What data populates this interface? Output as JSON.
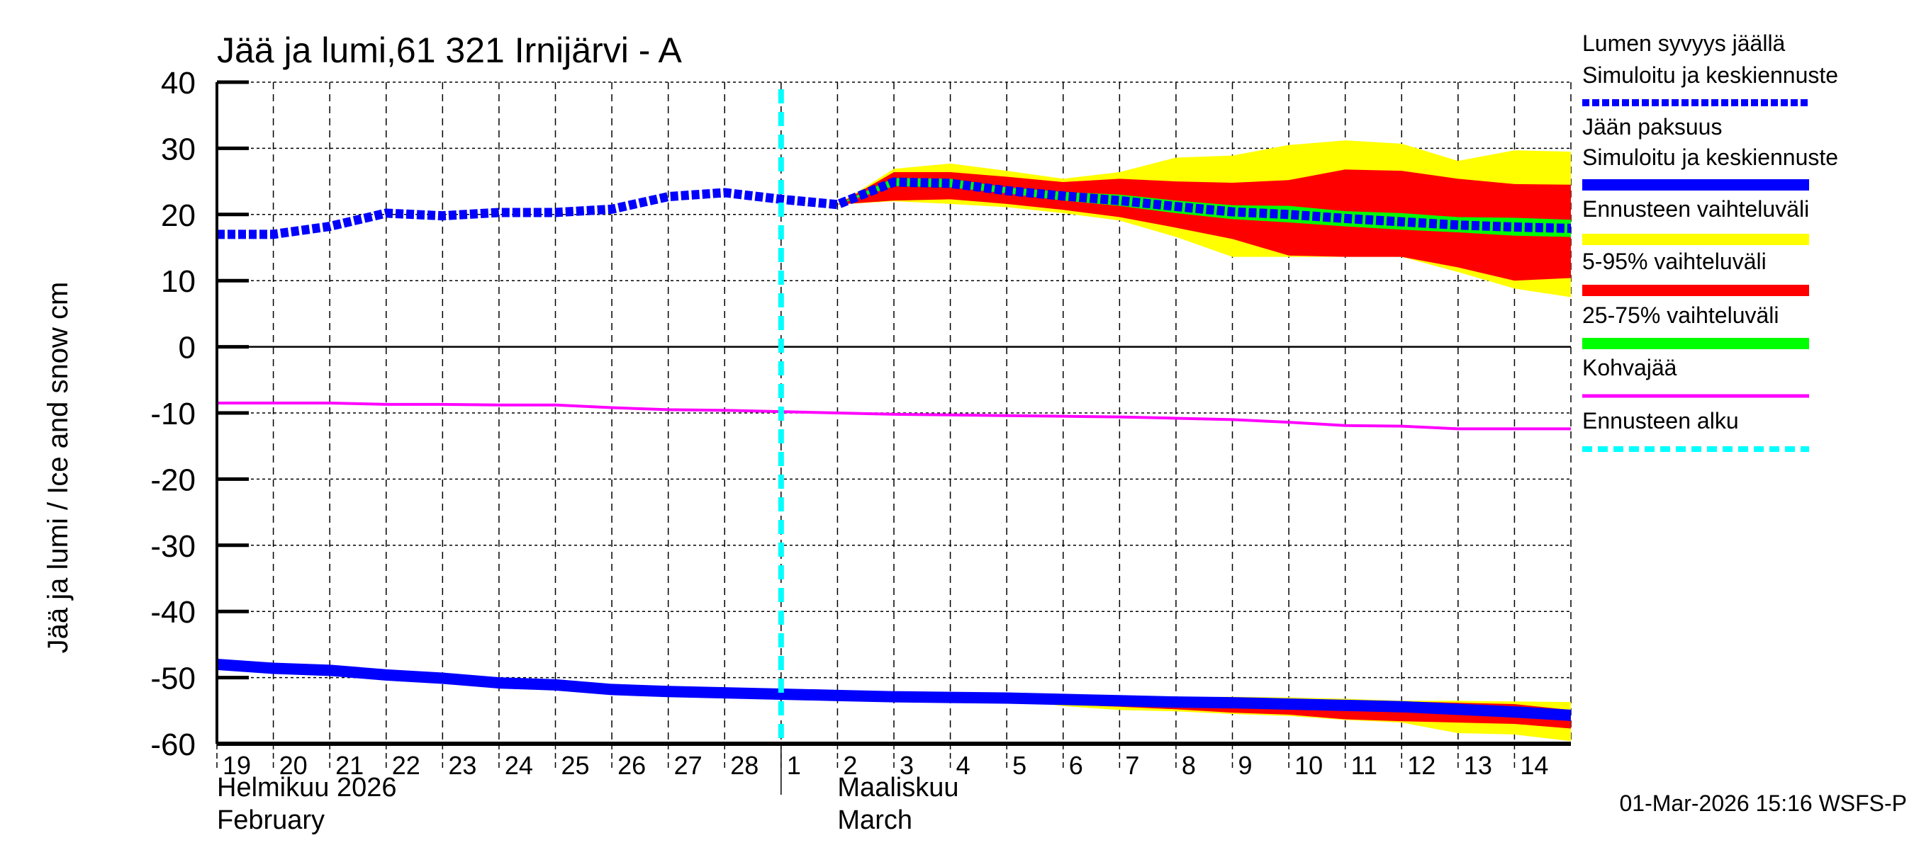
{
  "chart_data": {
    "type": "line",
    "title": "Jää ja lumi,61 321 Irnijärvi - A",
    "ylabel": "Jää ja lumi / Ice and snow    cm",
    "ylim": [
      -60,
      40
    ],
    "yticks": [
      40,
      30,
      20,
      10,
      0,
      -10,
      -20,
      -30,
      -40,
      -50,
      -60
    ],
    "grid": true,
    "legend_position": "right",
    "x_days": [
      "19",
      "20",
      "21",
      "22",
      "23",
      "24",
      "25",
      "26",
      "27",
      "28",
      "1",
      "2",
      "3",
      "4",
      "5",
      "6",
      "7",
      "8",
      "9",
      "10",
      "11",
      "12",
      "13",
      "14"
    ],
    "x_range": [
      "2026-02-19",
      "2026-03-15"
    ],
    "month_labels": [
      {
        "line1": "Helmikuu  2026",
        "line2": "February"
      },
      {
        "line1": "Maaliskuu",
        "line2": "March"
      }
    ],
    "dates": [
      "2026-02-19",
      "2026-02-20",
      "2026-02-21",
      "2026-02-22",
      "2026-02-23",
      "2026-02-24",
      "2026-02-25",
      "2026-02-26",
      "2026-02-27",
      "2026-02-28",
      "2026-03-01",
      "2026-03-02",
      "2026-03-03",
      "2026-03-04",
      "2026-03-05",
      "2026-03-06",
      "2026-03-07",
      "2026-03-08",
      "2026-03-09",
      "2026-03-10",
      "2026-03-11",
      "2026-03-12",
      "2026-03-13",
      "2026-03-14",
      "2026-03-15"
    ],
    "forecast_start": "2026-03-01",
    "forecast_band_dates_from": "2026-03-02",
    "series": {
      "snow_depth": [
        17,
        17,
        18.2,
        20.2,
        19.8,
        20.3,
        20.3,
        20.8,
        22.7,
        23.3,
        22.3,
        21.5,
        24.9,
        24.7,
        23.6,
        22.8,
        22.1,
        21.2,
        20.4,
        20.0,
        19.4,
        18.9,
        18.4,
        18.1,
        17.9
      ],
      "ice_thickness": [
        -48,
        -48.6,
        -48.9,
        -49.6,
        -50.1,
        -50.8,
        -51.1,
        -51.8,
        -52.1,
        -52.3,
        -52.5,
        -52.7,
        -52.9,
        -53,
        -53.1,
        -53.3,
        -53.5,
        -53.7,
        -53.8,
        -54,
        -54.2,
        -54.4,
        -54.8,
        -55.2,
        -55.7
      ],
      "slush_ice": [
        -8.5,
        -8.5,
        -8.5,
        -8.7,
        -8.7,
        -8.8,
        -8.8,
        -9.2,
        -9.5,
        -9.6,
        -9.8,
        -10,
        -10.2,
        -10.3,
        -10.4,
        -10.5,
        -10.6,
        -10.8,
        -11,
        -11.4,
        -11.9,
        -12,
        -12.4,
        -12.4,
        -12.4
      ]
    },
    "bands": {
      "snow": {
        "range_top": [
          21.5,
          26.9,
          27.7,
          26.6,
          25.4,
          26.4,
          28.6,
          28.9,
          30.5,
          31.2,
          30.7,
          28.1,
          29.7,
          29.5
        ],
        "range_bottom": [
          21.5,
          22,
          21.6,
          21.1,
          20.2,
          19.1,
          16.6,
          13.6,
          13.6,
          13.6,
          13.6,
          11.3,
          8.8,
          7.5
        ],
        "p95": [
          21.5,
          26.4,
          26.4,
          25.7,
          24.9,
          25.4,
          25,
          24.8,
          25.2,
          26.8,
          26.6,
          25.4,
          24.6,
          24.5
        ],
        "p5": [
          21.5,
          22.1,
          22.3,
          21.6,
          20.7,
          19.6,
          18,
          16.3,
          13.8,
          13.6,
          13.6,
          12,
          10,
          10.4
        ],
        "p75": [
          21.5,
          25.5,
          25.4,
          24.1,
          23.4,
          23,
          22.1,
          21.4,
          21.3,
          20.5,
          20.2,
          19.6,
          19.5,
          19.2
        ],
        "p25": [
          21.5,
          24.3,
          24.1,
          23.2,
          22.1,
          21.3,
          20.2,
          19.3,
          18.8,
          18.2,
          17.7,
          17.3,
          16.8,
          16.6
        ]
      },
      "ice": {
        "range_top": [
          -52.7,
          -52.9,
          -53,
          -53.1,
          -53.1,
          -53.1,
          -53,
          -52.9,
          -53,
          -53.2,
          -53.5,
          -53.5,
          -53.6,
          -53.7
        ],
        "range_bottom": [
          -52.7,
          -52.9,
          -53,
          -53.3,
          -54.3,
          -54.9,
          -55.1,
          -55.5,
          -55.8,
          -56.4,
          -56.8,
          -58.4,
          -58.6,
          -59.6
        ],
        "p95": [
          -52.7,
          -52.9,
          -53,
          -53.1,
          -53.2,
          -53.3,
          -53.3,
          -53.2,
          -53.3,
          -53.4,
          -53.6,
          -53.8,
          -54,
          -54.9
        ],
        "p5": [
          -52.7,
          -52.9,
          -53,
          -53.2,
          -54.1,
          -54.4,
          -54.8,
          -55.3,
          -55.6,
          -56.3,
          -56.6,
          -56.8,
          -57,
          -57.7
        ],
        "p75": [
          -52.3,
          -52.5,
          -52.6,
          -52.7,
          -52.9,
          -53.1,
          -53.3,
          -53.4,
          -53.6,
          -53.8,
          -54,
          -54.4,
          -54.8,
          -55.3
        ],
        "p25": [
          -53.1,
          -53.3,
          -53.4,
          -53.5,
          -53.7,
          -53.9,
          -54.1,
          -54.2,
          -54.4,
          -54.6,
          -54.8,
          -55.2,
          -55.6,
          -56.1
        ]
      }
    },
    "colors": {
      "snow": "#0000ff",
      "ice": "#0000ff",
      "slush": "#ff00ff",
      "forecast_start": "#00ffff",
      "range": "#ffff00",
      "p5_95": "#ff0000",
      "p25_75": "#00ff00"
    },
    "legend": [
      {
        "label1": "Lumen syvyys jäällä",
        "label2": "Simuloitu ja keskiennuste",
        "style": "dashed",
        "color": "#0000ff"
      },
      {
        "label1": "Jään paksuus",
        "label2": "Simuloitu ja keskiennuste",
        "style": "solid",
        "color": "#0000ff"
      },
      {
        "label1": "Ennusteen vaihteluväli",
        "style": "solid",
        "color": "#ffff00"
      },
      {
        "label1": "5-95% vaihteluväli",
        "style": "solid",
        "color": "#ff0000"
      },
      {
        "label1": "25-75% vaihteluväli",
        "style": "solid",
        "color": "#00ff00"
      },
      {
        "label1": "Kohvajää",
        "style": "thin",
        "color": "#ff00ff"
      },
      {
        "label1": "Ennusteen alku",
        "style": "dotted",
        "color": "#00ffff"
      }
    ]
  },
  "footer": {
    "timestamp": "01-Mar-2026 15:16 WSFS-P"
  }
}
